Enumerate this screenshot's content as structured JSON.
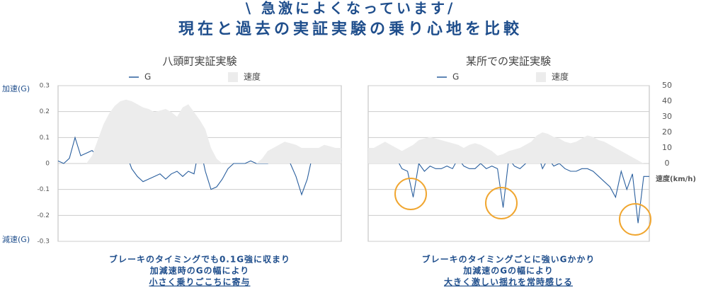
{
  "header": {
    "tagline": "\\ 急激によくなっています/",
    "title": "現在と過去の実証実験の乗り心地を比較"
  },
  "chart_data": [
    {
      "type": "line",
      "title": "八頭町実証実験",
      "ylabel_top": "加速(G)",
      "ylabel_bottom": "減速(G)",
      "ylim": [
        -0.3,
        0.3
      ],
      "yticks": [
        0.3,
        0.2,
        0.1,
        0,
        -0.1,
        -0.2,
        -0.3
      ],
      "ytick_labels": true,
      "y2lim": [
        -50,
        50
      ],
      "grid": true,
      "series": [
        {
          "name": "G",
          "color": "#2a5f9e",
          "values": [
            0.01,
            0,
            0.02,
            0.1,
            0.03,
            0.04,
            0.05,
            0.03,
            0.05,
            0.04,
            0.03,
            0.05,
            0.04,
            -0.02,
            -0.05,
            -0.07,
            -0.06,
            -0.05,
            -0.04,
            -0.06,
            -0.04,
            -0.03,
            -0.05,
            -0.03,
            -0.04,
            0.07,
            -0.03,
            -0.1,
            -0.09,
            -0.06,
            -0.02,
            0,
            0,
            0,
            0.01,
            0,
            0,
            0,
            0.01,
            0.05,
            0.04,
            0,
            -0.05,
            -0.12,
            -0.06,
            0.04,
            0.03,
            0.02,
            0.01,
            0.03,
            0.01
          ]
        },
        {
          "name": "速度",
          "color": "#ececec",
          "axis": "y2",
          "values": [
            0,
            0,
            0,
            0,
            0,
            0,
            5,
            15,
            25,
            32,
            37,
            40,
            41,
            40,
            38,
            36,
            35,
            33,
            34,
            35,
            33,
            30,
            36,
            38,
            33,
            28,
            22,
            10,
            3,
            0,
            0,
            0,
            0,
            0,
            0,
            0,
            3,
            8,
            10,
            12,
            14,
            13,
            12,
            10,
            10,
            10,
            10,
            12,
            11,
            10,
            10
          ]
        }
      ],
      "caption": [
        "ブレーキのタイミングでも0.1G強に収まり",
        "加減速時のGの幅により",
        "小さく乗りごこちに寄与"
      ]
    },
    {
      "type": "line",
      "title": "某所での実証実験",
      "y2label": "速度(km/h)",
      "ylim": [
        -0.3,
        0.3
      ],
      "yticks": [
        0.3,
        0.2,
        0.1,
        0,
        -0.1,
        -0.2,
        -0.3
      ],
      "ytick_labels": false,
      "y2lim": [
        -50,
        50
      ],
      "y2ticks": [
        50,
        40,
        30,
        20,
        10,
        0
      ],
      "grid": true,
      "series": [
        {
          "name": "G",
          "color": "#2a5f9e",
          "values": [
            0.05,
            0.04,
            0.02,
            0.05,
            0.06,
            0.02,
            -0.02,
            -0.03,
            -0.13,
            0,
            -0.03,
            -0.01,
            -0.02,
            -0.02,
            -0.01,
            -0.02,
            0.02,
            -0.01,
            -0.02,
            -0.02,
            0,
            -0.02,
            -0.01,
            -0.02,
            -0.17,
            0.02,
            -0.01,
            -0.02,
            0,
            0.03,
            0.05,
            -0.02,
            0.02,
            -0.01,
            0,
            -0.02,
            -0.03,
            -0.03,
            -0.02,
            -0.02,
            -0.03,
            -0.05,
            -0.07,
            -0.09,
            -0.13,
            -0.03,
            -0.1,
            -0.04,
            -0.23,
            -0.05,
            -0.05
          ]
        },
        {
          "name": "速度",
          "color": "#ececec",
          "axis": "y2",
          "values": [
            10,
            10,
            12,
            14,
            12,
            10,
            8,
            10,
            12,
            15,
            16,
            17,
            16,
            15,
            14,
            13,
            12,
            10,
            12,
            13,
            12,
            10,
            8,
            5,
            6,
            8,
            9,
            10,
            12,
            14,
            18,
            20,
            19,
            17,
            16,
            14,
            13,
            14,
            16,
            18,
            17,
            15,
            14,
            12,
            10,
            8,
            6,
            4,
            2,
            0,
            0
          ]
        }
      ],
      "caption": [
        "ブレーキのタイミングごとに強いGかかり",
        "加減速のGの幅により",
        "大きく激しい揺れを常時感じる"
      ]
    }
  ]
}
